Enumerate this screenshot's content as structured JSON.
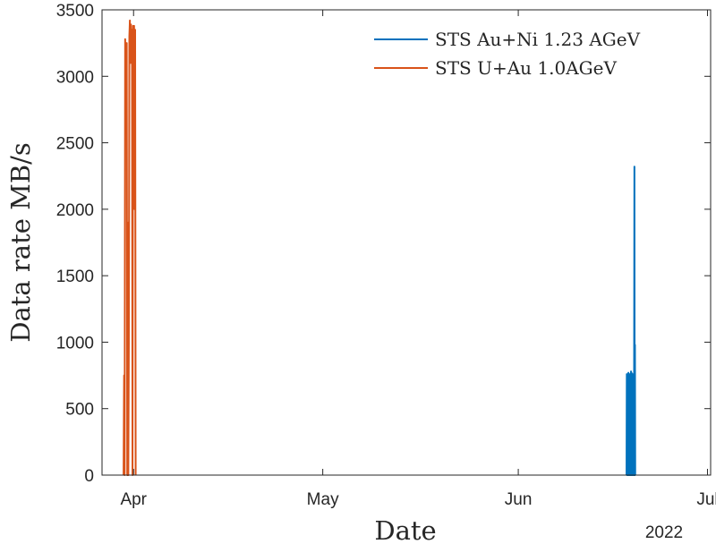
{
  "chart_data": {
    "type": "line",
    "title": "",
    "xlabel": "Date",
    "ylabel": "Data rate MB/s",
    "year_label": "2022",
    "x_ticks": [
      {
        "date": "2022-04-01",
        "label": "Apr"
      },
      {
        "date": "2022-05-01",
        "label": "May"
      },
      {
        "date": "2022-06-01",
        "label": "Jun"
      },
      {
        "date": "2022-07-01",
        "label": "Jul"
      }
    ],
    "y_ticks": [
      {
        "value": 0,
        "label": "0"
      },
      {
        "value": 500,
        "label": "500"
      },
      {
        "value": 1000,
        "label": "1000"
      },
      {
        "value": 1500,
        "label": "1500"
      },
      {
        "value": 2000,
        "label": "2000"
      },
      {
        "value": 2500,
        "label": "2500"
      },
      {
        "value": 3000,
        "label": "3000"
      },
      {
        "value": 3500,
        "label": "3500"
      }
    ],
    "xlim": [
      "2022-03-27 00:00",
      "2022-07-01 12:00"
    ],
    "ylim": [
      0,
      3500
    ],
    "grid": false,
    "legend_position": "top-right",
    "series": [
      {
        "name": "STS Au+Ni 1.23 AGeV",
        "color": "#0072BD",
        "x": [
          "2022-06-18 04:00",
          "2022-06-18 05:00",
          "2022-06-18 06:00",
          "2022-06-18 07:00",
          "2022-06-18 08:00",
          "2022-06-18 09:00",
          "2022-06-18 10:00",
          "2022-06-18 11:00",
          "2022-06-18 12:00",
          "2022-06-18 13:00",
          "2022-06-18 14:00",
          "2022-06-18 15:00",
          "2022-06-18 16:00",
          "2022-06-18 17:00",
          "2022-06-18 18:00",
          "2022-06-18 19:00",
          "2022-06-18 20:00",
          "2022-06-18 21:00",
          "2022-06-18 22:00",
          "2022-06-18 23:00",
          "2022-06-19 00:00",
          "2022-06-19 01:00",
          "2022-06-19 02:00",
          "2022-06-19 03:00",
          "2022-06-19 04:00",
          "2022-06-19 05:00",
          "2022-06-19 06:00",
          "2022-06-19 07:00",
          "2022-06-19 08:00",
          "2022-06-19 09:00",
          "2022-06-19 10:00",
          "2022-06-19 11:00",
          "2022-06-19 12:00",
          "2022-06-19 13:00",
          "2022-06-19 14:00"
        ],
        "y": [
          0,
          760,
          0,
          750,
          0,
          720,
          0,
          770,
          0,
          650,
          0,
          740,
          0,
          760,
          0,
          700,
          0,
          780,
          0,
          770,
          0,
          620,
          0,
          760,
          0,
          680,
          0,
          750,
          0,
          900,
          2320,
          0,
          980,
          0,
          0
        ]
      },
      {
        "name": "STS U+Au 1.0AGeV",
        "color": "#D95319",
        "x": [
          "2022-03-30 10:00",
          "2022-03-30 12:00",
          "2022-03-30 14:00",
          "2022-03-30 16:00",
          "2022-03-30 18:00",
          "2022-03-30 20:00",
          "2022-03-30 22:00",
          "2022-03-31 00:00",
          "2022-03-31 02:00",
          "2022-03-31 04:00",
          "2022-03-31 06:00",
          "2022-03-31 08:00",
          "2022-03-31 10:00",
          "2022-03-31 12:00",
          "2022-03-31 14:00",
          "2022-03-31 16:00",
          "2022-03-31 18:00",
          "2022-03-31 20:00",
          "2022-03-31 22:00",
          "2022-04-01 00:00",
          "2022-04-01 02:00",
          "2022-04-01 04:00",
          "2022-04-01 06:00",
          "2022-04-01 08:00"
        ],
        "y": [
          0,
          750,
          0,
          3280,
          3100,
          3000,
          3250,
          0,
          1900,
          0,
          1000,
          3300,
          3420,
          3100,
          3390,
          3200,
          3350,
          0,
          3380,
          3200,
          3380,
          2000,
          3350,
          0
        ]
      }
    ]
  }
}
